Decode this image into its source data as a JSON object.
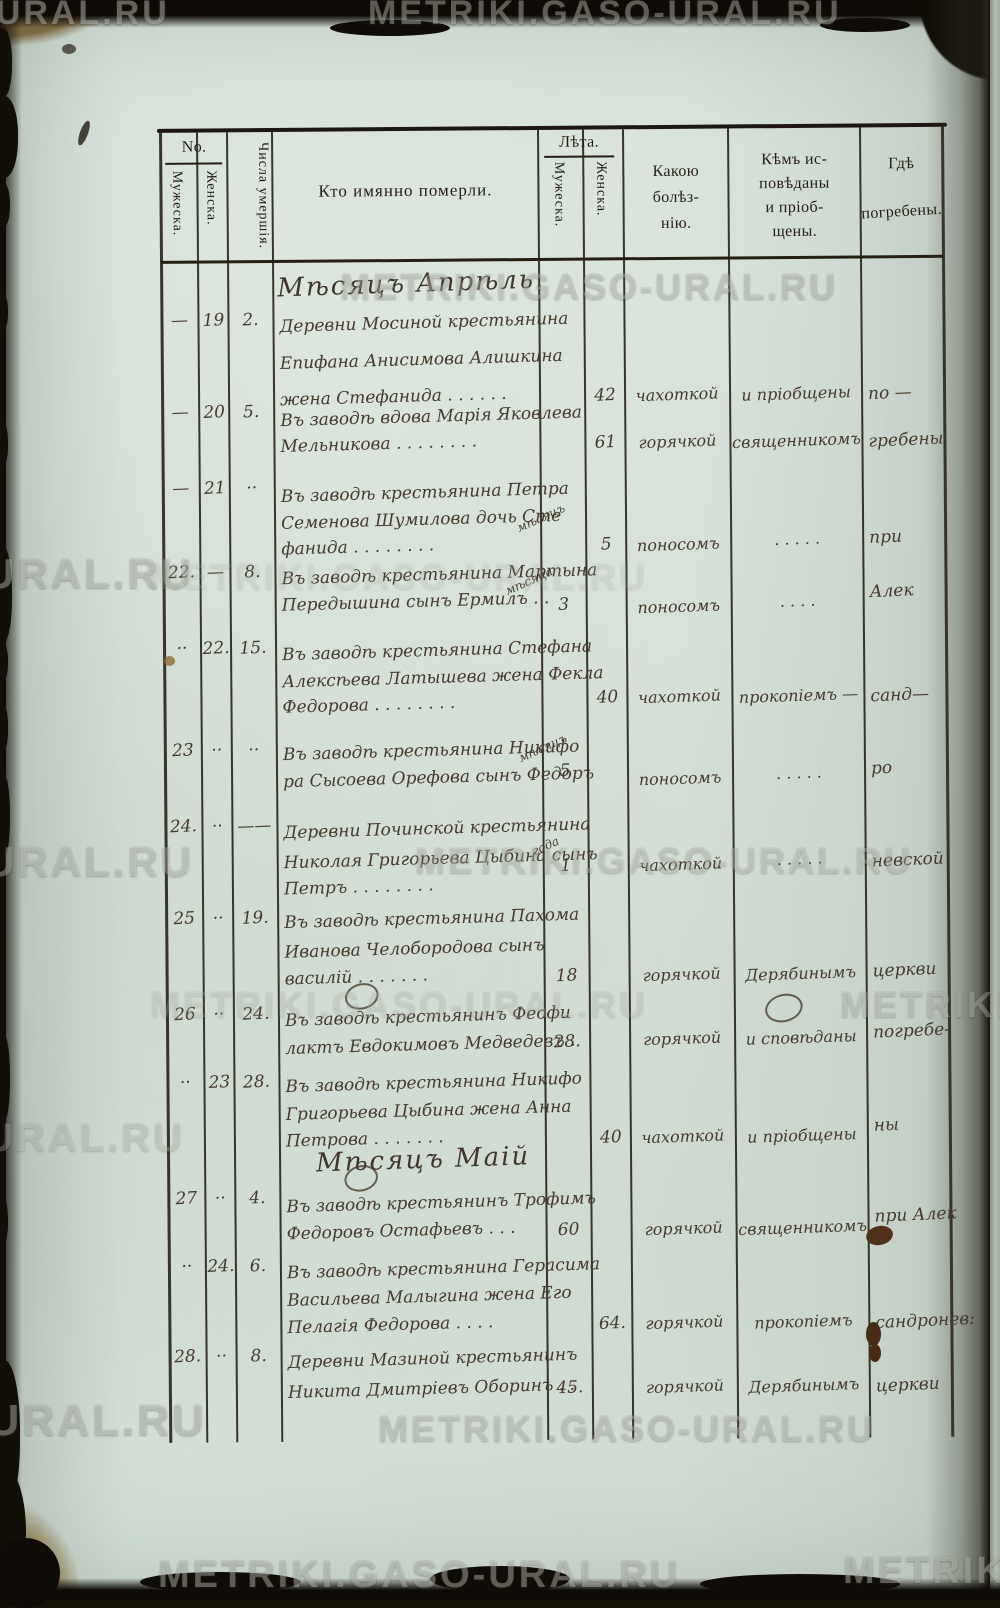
{
  "watermark": {
    "text": "METRIKI.GASO-URAL.RU",
    "fragments": [
      {
        "text": "O-URAL.RU"
      },
      {
        "text": "METRIKI.GASO-URAL.RU"
      },
      {
        "text": "METRIKI.GASO-URAL.RU"
      },
      {
        "text": "URAL.RU"
      },
      {
        "text": "METRIKI.GASO-URAL.RU"
      },
      {
        "text": "URAL.RU"
      },
      {
        "text": "METRIKI.GASO-URAL.RU"
      },
      {
        "text": "METRIKI.GASO-URAL.RU"
      },
      {
        "text": "METRIKI"
      },
      {
        "text": "URAL.RU"
      },
      {
        "text": "-URAL.RU"
      },
      {
        "text": "METRIKI.GASO-URAL.RU"
      },
      {
        "text": "METRIKI.GASO-URAL.RU"
      },
      {
        "text": "METRIKI"
      }
    ]
  },
  "table": {
    "header": {
      "no": "No.",
      "male": "Мужеска.",
      "female": "Женска.",
      "dates": "Числа умершія.",
      "who": "Кто имянно померли.",
      "age": "Лѣта.",
      "age_male": "Мужеска.",
      "age_female": "Женска.",
      "illness_lines": [
        "Какою",
        "болѣз-",
        "нію."
      ],
      "confessed_lines": [
        "Кѣмъ ис-",
        "повѣданы",
        "и пріоб-",
        "щены."
      ],
      "buried_lines": [
        "Гдѣ",
        "погребены."
      ]
    },
    "sections": [
      {
        "title": "Мѣсяцъ Апрѣль."
      },
      {
        "title": "Мѣсяцъ Маій"
      }
    ],
    "rows": [
      {
        "no_male": "—",
        "no_female": "19",
        "date": "2.",
        "who": [
          "Деревни Мосиной крестьянина",
          "Епифана Анисимова Алишкина",
          "жена Стефанида . . . . . ."
        ],
        "age_male": "",
        "age_female": "42",
        "age_word": "",
        "illness": "чахоткой",
        "confessed": "и пріобщены",
        "buried": "по —"
      },
      {
        "no_male": "—",
        "no_female": "20",
        "date": "5.",
        "who": [
          "Въ заводѣ вдова Марія Яковлева",
          "Мельникова . . . . . . . ."
        ],
        "age_male": "",
        "age_female": "61",
        "age_word": "",
        "illness": "горячкой",
        "confessed": "священникомъ",
        "buried": "гребены"
      },
      {
        "no_male": "—",
        "no_female": "21",
        "date": "··",
        "who": [
          "Въ заводѣ крестьянина Петра",
          "Семенова Шумилова дочь Сте",
          "фанида . . . . . . . ."
        ],
        "age_male": "",
        "age_female": "5",
        "age_word": "мѣсяцъ",
        "illness": "поносомъ",
        "confessed": "· · · · ·",
        "buried": "при"
      },
      {
        "no_male": "22.",
        "no_female": "—",
        "date": "8.",
        "who": [
          "Въ заводѣ крестьянина Мартына",
          "Передышина сынъ Ермилъ . ."
        ],
        "age_male": "3",
        "age_female": "",
        "age_word": "мѣсяца",
        "illness": "поносомъ",
        "confessed": "· · · ·",
        "buried": "Алек"
      },
      {
        "no_male": "··",
        "no_female": "22.",
        "date": "15.",
        "who": [
          "Въ заводѣ крестьянина Стефана",
          "Алексѣева Латышева жена Фекла",
          "Федорова . . . . . . . ."
        ],
        "age_male": "",
        "age_female": "40",
        "age_word": "",
        "illness": "чахоткой",
        "confessed": "прокопіемъ —",
        "buried": "санд—"
      },
      {
        "no_male": "23",
        "no_female": "··",
        "date": "··",
        "who": [
          "Въ заводѣ крестьянина Никифо",
          "ра Сысоева Орефова сынъ Федоръ"
        ],
        "age_male": "5",
        "age_female": "",
        "age_word": "мѣсяцъ",
        "illness": "поносомъ",
        "confessed": "· · · · ·",
        "buried": "ро"
      },
      {
        "no_male": "24.",
        "no_female": "··",
        "date": "——",
        "who": [
          "Деревни Починской крестьянина",
          "Николая Григорьева Цыбина сынъ",
          "Петръ . . . . . . . ."
        ],
        "age_male": "1",
        "age_female": "",
        "age_word": "года",
        "illness": "чахоткой",
        "confessed": "· · · · ·",
        "buried": "невской"
      },
      {
        "no_male": "25",
        "no_female": "··",
        "date": "19.",
        "who": [
          "Въ заводѣ крестьянина Пахома",
          "Иванова Челобородова сынъ",
          "василій . . . . . . ."
        ],
        "age_male": "18",
        "age_female": "",
        "age_word": "",
        "illness": "горячкой",
        "confessed": "Дерябинымъ",
        "buried": "церкви"
      },
      {
        "no_male": "26",
        "no_female": "··",
        "date": "24.",
        "who": [
          "Въ заводѣ крестьянинъ Феофи",
          "лактъ Евдокимовъ Медведевъ ."
        ],
        "age_male": "28.",
        "age_female": "",
        "age_word": "",
        "illness": "горячкой",
        "confessed": "и сповѣданы",
        "buried": "погребе-"
      },
      {
        "no_male": "··",
        "no_female": "23",
        "date": "28.",
        "who": [
          "Въ заводѣ крестьянина Никифо",
          "Григорьева Цыбина жена Анна",
          "Петрова . . . . . . ."
        ],
        "age_male": "",
        "age_female": "40",
        "age_word": "",
        "illness": "чахоткой",
        "confessed": "и пріобщены",
        "buried": "ны"
      },
      {
        "no_male": "27",
        "no_female": "··",
        "date": "4.",
        "who": [
          "Въ заводѣ крестьянинъ Трофимъ",
          "Федоровъ Остафьевъ . . ."
        ],
        "age_male": "60",
        "age_female": "",
        "age_word": "",
        "illness": "горячкой",
        "confessed": "священникомъ",
        "buried": "при Алек"
      },
      {
        "no_male": "··",
        "no_female": "24.",
        "date": "6.",
        "who": [
          "Въ заводѣ крестьянина Герасима",
          "Васильева Малыгина жена Его",
          "Пелагія Федорова . . . ."
        ],
        "age_male": "",
        "age_female": "64.",
        "age_word": "",
        "illness": "горячкой",
        "confessed": "прокопіемъ",
        "buried": "сандронев:"
      },
      {
        "no_male": "28.",
        "no_female": "··",
        "date": "8.",
        "who": [
          "Деревни Мазиной крестьянинъ",
          "Никита Дмитріевъ Оборинъ . ."
        ],
        "age_male": "45.",
        "age_female": "",
        "age_word": "",
        "illness": "горячкой",
        "confessed": "Дерябинымъ",
        "buried": "церкви"
      }
    ]
  }
}
